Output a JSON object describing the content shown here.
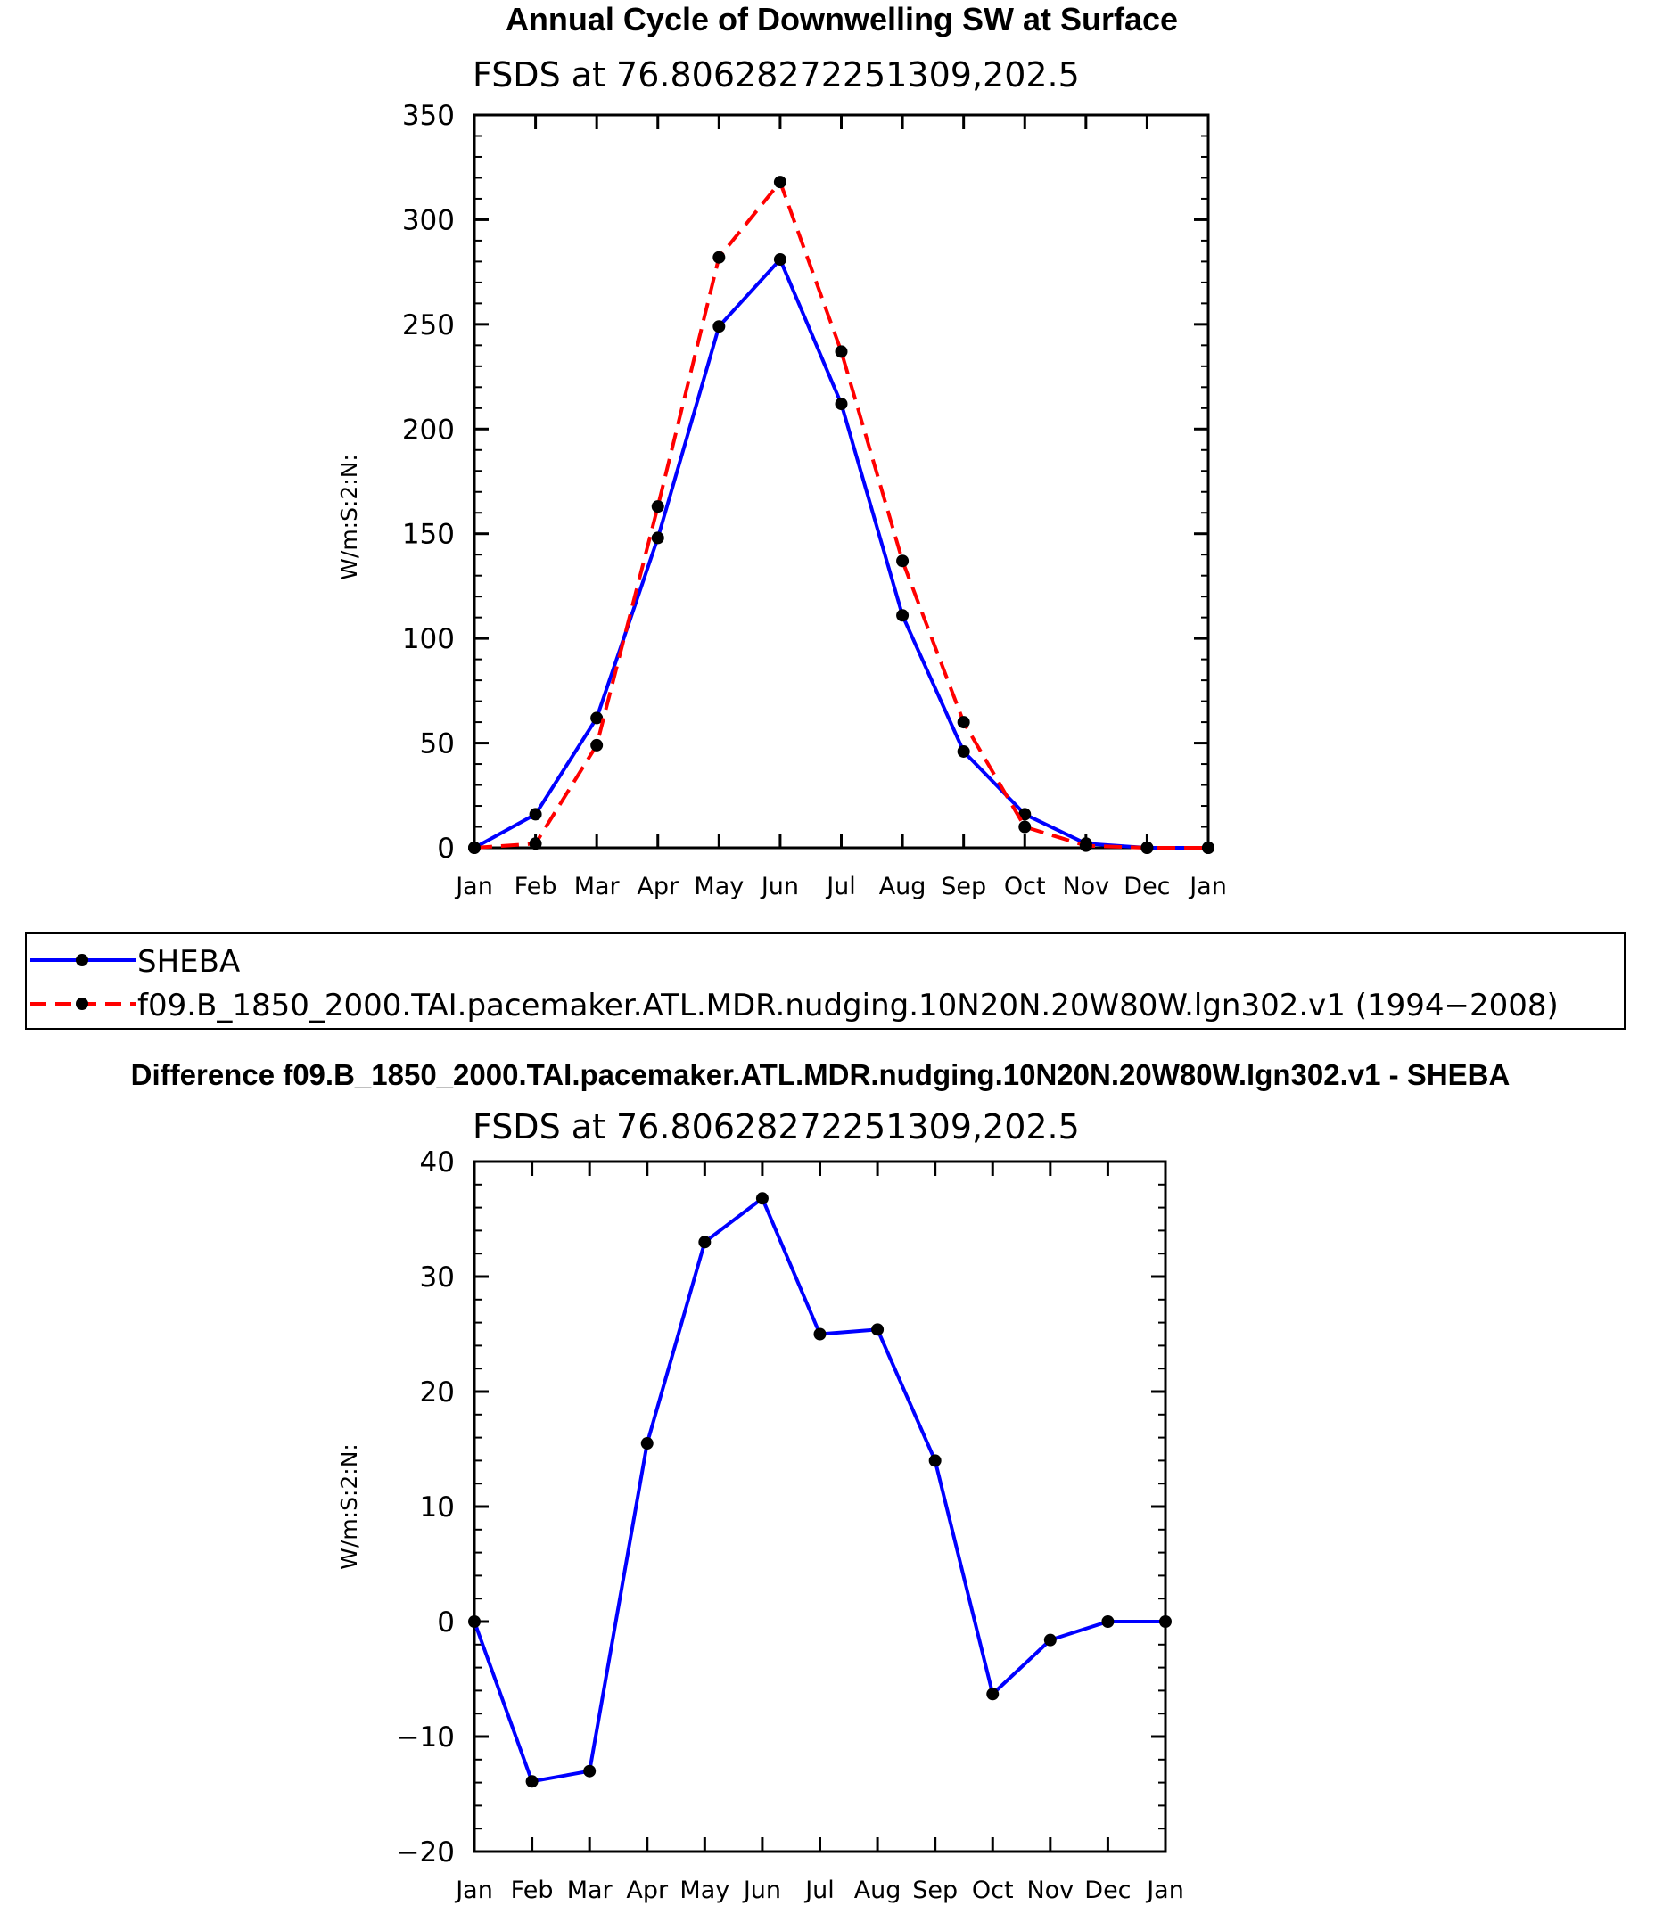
{
  "chart_data": [
    {
      "type": "line",
      "title": "Annual Cycle of Downwelling SW at Surface",
      "subtitle": "FSDS at 76.80628272251309,202.5",
      "xlabel": "",
      "ylabel": "W/m:S:2:N:",
      "categories": [
        "Jan",
        "Feb",
        "Mar",
        "Apr",
        "May",
        "Jun",
        "Jul",
        "Aug",
        "Sep",
        "Oct",
        "Nov",
        "Dec",
        "Jan"
      ],
      "ylim": [
        0,
        350
      ],
      "yticks": [
        0,
        50,
        100,
        150,
        200,
        250,
        300,
        350
      ],
      "yticklabels": [
        "0",
        "50",
        "100",
        "150",
        "200",
        "250",
        "300",
        "350"
      ],
      "series": [
        {
          "name": "SHEBA",
          "color": "#0000ff",
          "dash": "solid",
          "values": [
            0,
            16,
            62,
            148,
            249,
            281,
            212,
            111,
            46,
            16,
            2,
            0,
            0
          ]
        },
        {
          "name": "f09.B_1850_2000.TAI.pacemaker.ATL.MDR.nudging.10N20N.20W80W.lgn302.v1 (1994−2008)",
          "color": "#ff0000",
          "dash": "dashed",
          "values": [
            0,
            2,
            49,
            163,
            282,
            318,
            237,
            137,
            60,
            10,
            1,
            0,
            0
          ]
        }
      ],
      "legend": "bottom"
    },
    {
      "type": "line",
      "title": "Difference f09.B_1850_2000.TAI.pacemaker.ATL.MDR.nudging.10N20N.20W80W.lgn302.v1 - SHEBA",
      "subtitle": "FSDS at 76.80628272251309,202.5",
      "xlabel": "",
      "ylabel": "W/m:S:2:N:",
      "categories": [
        "Jan",
        "Feb",
        "Mar",
        "Apr",
        "May",
        "Jun",
        "Jul",
        "Aug",
        "Sep",
        "Oct",
        "Nov",
        "Dec",
        "Jan"
      ],
      "ylim": [
        -20,
        40
      ],
      "yticks": [
        -20,
        -10,
        0,
        10,
        20,
        30,
        40
      ],
      "yticklabels": [
        "−20",
        "−10",
        "0",
        "10",
        "20",
        "30",
        "40"
      ],
      "series": [
        {
          "name": "Difference",
          "color": "#0000ff",
          "dash": "solid",
          "values": [
            0,
            -13.9,
            -13,
            15.5,
            33,
            36.8,
            25,
            25.4,
            14,
            -6.3,
            -1.6,
            0,
            0
          ]
        }
      ]
    }
  ]
}
